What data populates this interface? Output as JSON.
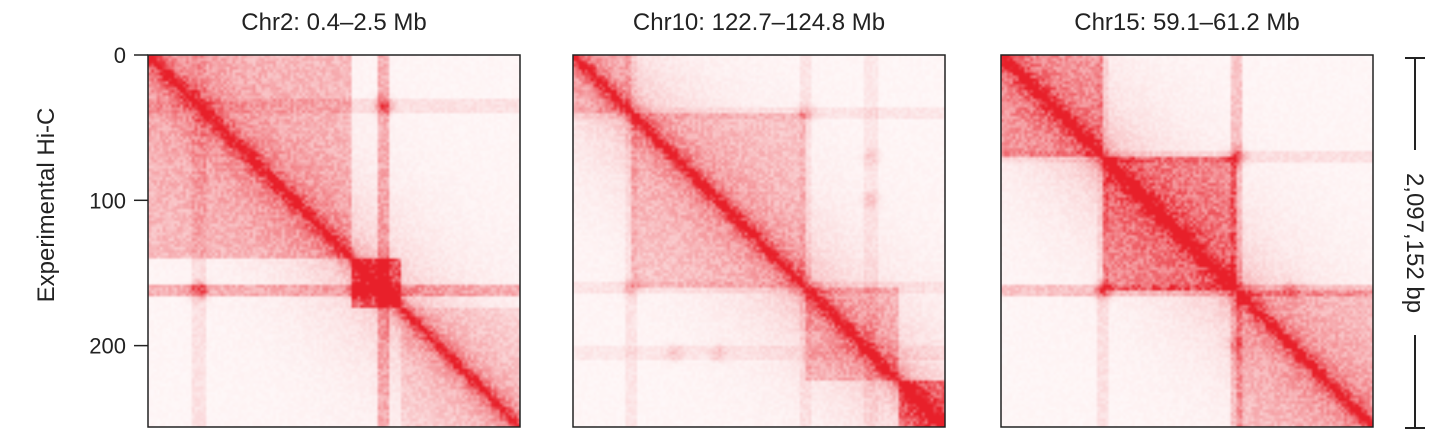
{
  "chart_data": {
    "type": "heatmap",
    "ylabel": "Experimental Hi-C",
    "yticks": [
      0,
      100,
      200
    ],
    "ylim": [
      0,
      256
    ],
    "matrix_size": 256,
    "colors": {
      "high": "#e8202a",
      "low": "#ffffff"
    },
    "scale_bar": {
      "label": "2,097,152 bp"
    },
    "panels": [
      {
        "title": "Chr2: 0.4–2.5 Mb",
        "domains": [
          [
            0,
            140,
            0.25
          ],
          [
            140,
            175,
            0.55
          ],
          [
            175,
            256,
            0.12
          ]
        ],
        "stripes": [
          [
            162,
            0.5
          ],
          [
            35,
            0.15
          ]
        ],
        "dots": [
          [
            35,
            162,
            0.45
          ],
          [
            145,
            162,
            0.4
          ]
        ]
      },
      {
        "title": "Chr10: 122.7–124.8 Mb",
        "domains": [
          [
            0,
            40,
            0.18
          ],
          [
            40,
            160,
            0.2
          ],
          [
            160,
            225,
            0.22
          ],
          [
            225,
            256,
            0.5
          ]
        ],
        "stripes": [
          [
            40,
            0.12
          ],
          [
            160,
            0.12
          ],
          [
            205,
            0.1
          ]
        ],
        "dots": [
          [
            40,
            160,
            0.2
          ],
          [
            70,
            205,
            0.15
          ],
          [
            100,
            205,
            0.15
          ]
        ]
      },
      {
        "title": "Chr15: 59.1–61.2 Mb",
        "domains": [
          [
            0,
            70,
            0.35
          ],
          [
            70,
            162,
            0.45
          ],
          [
            162,
            256,
            0.22
          ]
        ],
        "stripes": [
          [
            162,
            0.35
          ],
          [
            70,
            0.15
          ]
        ],
        "dots": [
          [
            70,
            162,
            0.45
          ],
          [
            162,
            200,
            0.25
          ]
        ]
      }
    ]
  }
}
